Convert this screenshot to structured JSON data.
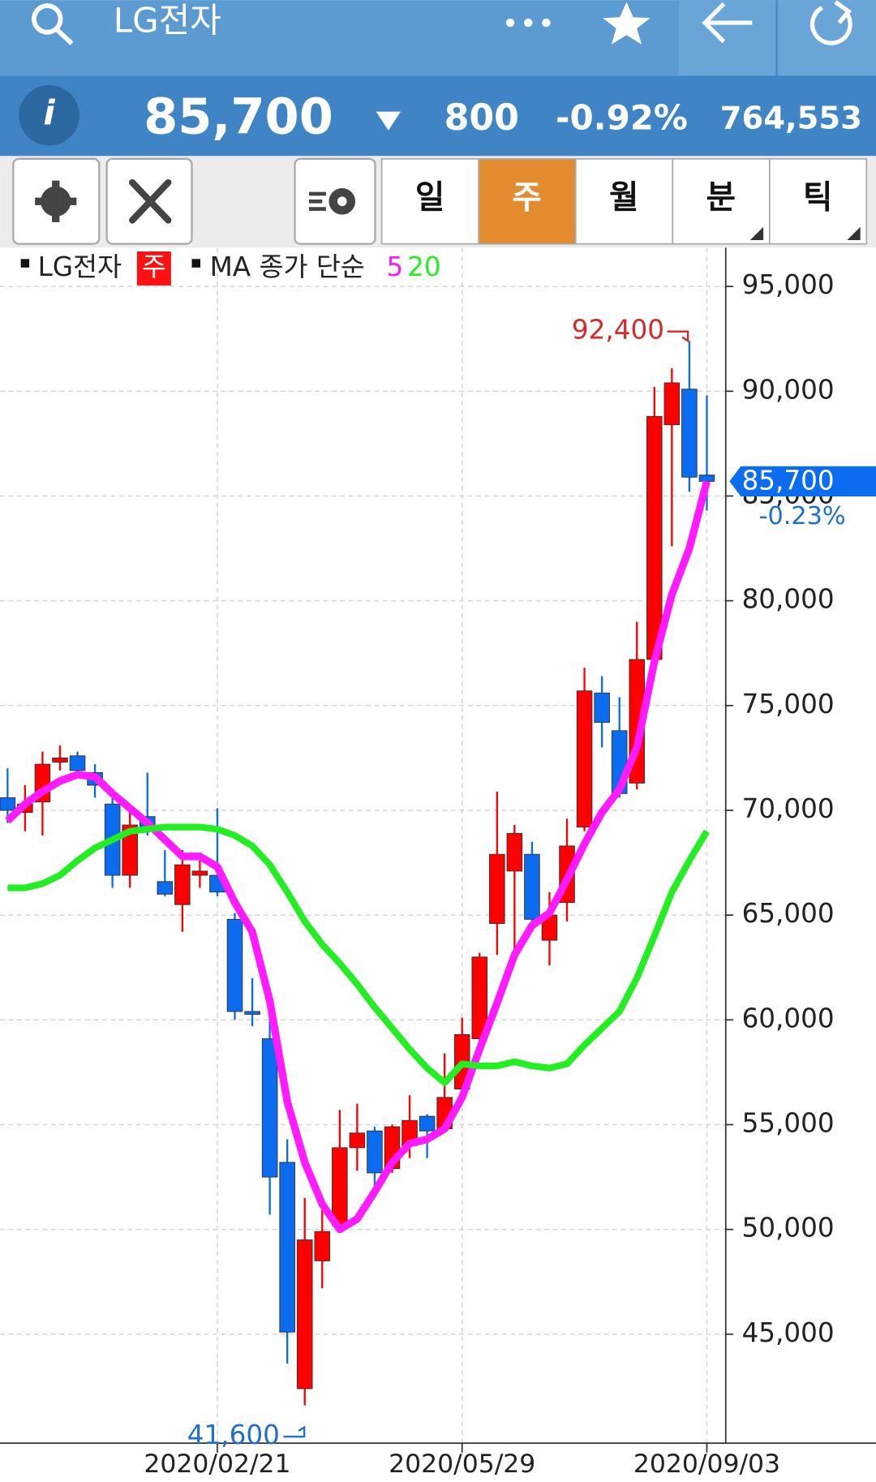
{
  "header": {
    "title": "LG전자"
  },
  "quote": {
    "price": "85,700",
    "change": "800",
    "rate": "-0.92%",
    "volume": "764,553"
  },
  "toolbar": {
    "periods": [
      "일",
      "주",
      "월",
      "분",
      "틱"
    ]
  },
  "legend": {
    "name": "LG전자",
    "period": "주",
    "ma_label": "MA 종가 단순"
  },
  "chart_data": {
    "type": "candlestick",
    "categories": [
      null,
      null,
      null,
      null,
      null,
      null,
      null,
      null,
      null,
      null,
      null,
      null,
      "2020/02/21",
      null,
      null,
      null,
      null,
      null,
      null,
      null,
      null,
      null,
      null,
      null,
      null,
      null,
      "2020/05/29",
      null,
      null,
      null,
      null,
      null,
      null,
      null,
      null,
      null,
      null,
      null,
      null,
      null,
      "2020/09/03"
    ],
    "open": [
      70600,
      69900,
      70400,
      72300,
      72600,
      71800,
      70300,
      66900,
      69700,
      66600,
      65500,
      66900,
      66900,
      64800,
      60400,
      59100,
      53200,
      42400,
      48500,
      50200,
      53900,
      54700,
      52900,
      54000,
      55400,
      54800,
      56700,
      59100,
      64600,
      67100,
      67900,
      63800,
      65600,
      69200,
      75600,
      73800,
      71300,
      77200,
      88400,
      90100,
      86000
    ],
    "high": [
      72000,
      71200,
      72800,
      73100,
      72800,
      72200,
      70700,
      69900,
      71800,
      68100,
      68100,
      67600,
      70100,
      65100,
      62000,
      61500,
      54300,
      51500,
      51000,
      55700,
      56000,
      54900,
      55000,
      56400,
      55500,
      58400,
      60100,
      63200,
      70900,
      69300,
      68500,
      66100,
      69600,
      76800,
      76400,
      75400,
      79000,
      90200,
      91100,
      92400,
      89800
    ],
    "low": [
      69400,
      69000,
      68800,
      71900,
      71700,
      70600,
      66300,
      66300,
      68800,
      65900,
      64200,
      66300,
      65900,
      60000,
      59700,
      50700,
      43600,
      41600,
      47200,
      50100,
      52800,
      51500,
      52700,
      53400,
      53400,
      54600,
      56400,
      58900,
      63100,
      63100,
      64200,
      62600,
      64700,
      69000,
      73000,
      70600,
      71000,
      77100,
      82600,
      85200,
      84300
    ],
    "close": [
      70000,
      70300,
      72200,
      72500,
      71900,
      71200,
      66900,
      69300,
      69100,
      66000,
      67400,
      67100,
      66100,
      60400,
      60300,
      52500,
      45100,
      49500,
      49900,
      53900,
      54600,
      52700,
      54900,
      55200,
      54700,
      56300,
      59300,
      63000,
      67900,
      68900,
      64800,
      65000,
      68300,
      75700,
      74200,
      70800,
      77200,
      88800,
      90400,
      85900,
      85700
    ],
    "up_color": "#ff0000",
    "down_color": "#0b6cf0",
    "series": [
      {
        "name": "5",
        "color": "#ff1aff",
        "values": [
          69500,
          70300,
          70900,
          71400,
          71700,
          71600,
          70800,
          70100,
          69400,
          68600,
          67800,
          67800,
          67300,
          65600,
          64200,
          60900,
          56100,
          53200,
          51200,
          50000,
          50500,
          51800,
          53200,
          54100,
          54300,
          54800,
          56300,
          58600,
          60800,
          63100,
          64500,
          65100,
          66700,
          68400,
          69900,
          71000,
          73000,
          77100,
          80300,
          82500,
          85700
        ]
      },
      {
        "name": "20",
        "color": "#22ee22",
        "values": [
          66300,
          66300,
          66500,
          66900,
          67600,
          68200,
          68600,
          69000,
          69100,
          69200,
          69200,
          69200,
          69100,
          68800,
          68300,
          67400,
          66100,
          64700,
          63600,
          62700,
          61700,
          60600,
          59600,
          58600,
          57700,
          57000,
          57900,
          57800,
          57800,
          58000,
          57800,
          57700,
          57900,
          58800,
          59600,
          60400,
          62000,
          64000,
          66100,
          67600,
          69000
        ]
      }
    ],
    "ylim": [
      39800,
      96850
    ],
    "yticks": [
      {
        "value": 45000,
        "label": "45,000"
      },
      {
        "value": 50000,
        "label": "50,000"
      },
      {
        "value": 55000,
        "label": "55,000"
      },
      {
        "value": 60000,
        "label": "60,000"
      },
      {
        "value": 65000,
        "label": "65,000"
      },
      {
        "value": 70000,
        "label": "70,000"
      },
      {
        "value": 75000,
        "label": "75,000"
      },
      {
        "value": 80000,
        "label": "80,000"
      },
      {
        "value": 85000,
        "label": "85,000"
      },
      {
        "value": 90000,
        "label": "90,000"
      },
      {
        "value": 95000,
        "label": "95,000"
      }
    ],
    "grid": true,
    "high_label": {
      "value": 92400,
      "label": "92,400"
    },
    "low_label": {
      "value": 41600,
      "label": "41,600"
    },
    "last_price": {
      "value": 85700,
      "label": "85,700",
      "change": "-0.23%"
    }
  }
}
